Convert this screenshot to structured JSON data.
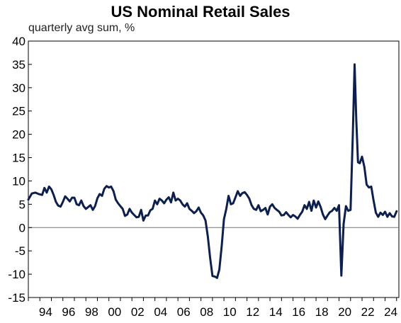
{
  "chart_data": {
    "type": "line",
    "title": "US Nominal Retail Sales",
    "subtitle": "quarterly avg sum, %",
    "xlabel": "",
    "ylabel": "",
    "xlim": [
      1993.0,
      2025.2
    ],
    "ylim": [
      -15,
      40
    ],
    "y_ticks": [
      40,
      35,
      30,
      25,
      20,
      15,
      10,
      5,
      0,
      -5,
      -10,
      -15
    ],
    "x_ticks": [
      {
        "year": 1994,
        "label": "94"
      },
      {
        "year": 1996,
        "label": "96"
      },
      {
        "year": 1998,
        "label": "98"
      },
      {
        "year": 2000,
        "label": "00"
      },
      {
        "year": 2002,
        "label": "02"
      },
      {
        "year": 2004,
        "label": "04"
      },
      {
        "year": 2006,
        "label": "06"
      },
      {
        "year": 2008,
        "label": "08"
      },
      {
        "year": 2010,
        "label": "10"
      },
      {
        "year": 2012,
        "label": "12"
      },
      {
        "year": 2014,
        "label": "14"
      },
      {
        "year": 2016,
        "label": "16"
      },
      {
        "year": 2018,
        "label": "18"
      },
      {
        "year": 2020,
        "label": "20"
      },
      {
        "year": 2022,
        "label": "22"
      },
      {
        "year": 2024,
        "label": "24"
      }
    ],
    "grid": false,
    "zero_line": true,
    "line_color": "#0d1f4d",
    "series": [
      {
        "values": [
          [
            1993.0,
            6.0
          ],
          [
            1993.3,
            7.3
          ],
          [
            1993.6,
            7.5
          ],
          [
            1993.9,
            7.2
          ],
          [
            1994.2,
            7.0
          ],
          [
            1994.4,
            8.5
          ],
          [
            1994.6,
            7.5
          ],
          [
            1994.8,
            8.8
          ],
          [
            1995.0,
            8.2
          ],
          [
            1995.2,
            7.0
          ],
          [
            1995.4,
            5.5
          ],
          [
            1995.6,
            4.7
          ],
          [
            1995.8,
            4.5
          ],
          [
            1996.0,
            5.5
          ],
          [
            1996.2,
            6.7
          ],
          [
            1996.4,
            6.2
          ],
          [
            1996.6,
            5.6
          ],
          [
            1996.8,
            6.4
          ],
          [
            1997.0,
            6.4
          ],
          [
            1997.2,
            5.0
          ],
          [
            1997.4,
            4.8
          ],
          [
            1997.6,
            5.8
          ],
          [
            1997.8,
            4.6
          ],
          [
            1998.0,
            4.0
          ],
          [
            1998.2,
            4.4
          ],
          [
            1998.4,
            4.8
          ],
          [
            1998.6,
            3.8
          ],
          [
            1998.8,
            4.6
          ],
          [
            1999.0,
            6.3
          ],
          [
            1999.2,
            7.2
          ],
          [
            1999.4,
            6.8
          ],
          [
            1999.6,
            8.3
          ],
          [
            1999.8,
            8.9
          ],
          [
            2000.0,
            8.6
          ],
          [
            2000.2,
            8.8
          ],
          [
            2000.4,
            7.8
          ],
          [
            2000.6,
            6.0
          ],
          [
            2000.8,
            5.2
          ],
          [
            2001.0,
            4.6
          ],
          [
            2001.2,
            4.0
          ],
          [
            2001.4,
            2.5
          ],
          [
            2001.6,
            2.8
          ],
          [
            2001.8,
            4.0
          ],
          [
            2002.0,
            3.2
          ],
          [
            2002.2,
            2.7
          ],
          [
            2002.4,
            2.2
          ],
          [
            2002.6,
            2.3
          ],
          [
            2002.8,
            3.8
          ],
          [
            2003.0,
            1.5
          ],
          [
            2003.2,
            2.6
          ],
          [
            2003.4,
            2.6
          ],
          [
            2003.6,
            3.7
          ],
          [
            2003.8,
            4.0
          ],
          [
            2004.0,
            5.8
          ],
          [
            2004.2,
            5.0
          ],
          [
            2004.4,
            6.2
          ],
          [
            2004.6,
            5.8
          ],
          [
            2004.8,
            5.2
          ],
          [
            2005.0,
            6.0
          ],
          [
            2005.2,
            6.5
          ],
          [
            2005.4,
            5.4
          ],
          [
            2005.6,
            7.5
          ],
          [
            2005.8,
            5.8
          ],
          [
            2006.0,
            6.2
          ],
          [
            2006.2,
            5.8
          ],
          [
            2006.4,
            5.0
          ],
          [
            2006.6,
            4.5
          ],
          [
            2006.8,
            5.2
          ],
          [
            2007.0,
            4.0
          ],
          [
            2007.2,
            3.6
          ],
          [
            2007.4,
            3.1
          ],
          [
            2007.6,
            3.5
          ],
          [
            2007.8,
            4.3
          ],
          [
            2008.0,
            3.2
          ],
          [
            2008.2,
            2.6
          ],
          [
            2008.4,
            1.5
          ],
          [
            2008.6,
            -2.0
          ],
          [
            2008.8,
            -6.5
          ],
          [
            2009.0,
            -10.4
          ],
          [
            2009.2,
            -10.5
          ],
          [
            2009.4,
            -10.8
          ],
          [
            2009.6,
            -9.0
          ],
          [
            2009.8,
            -4.0
          ],
          [
            2010.0,
            1.8
          ],
          [
            2010.2,
            4.0
          ],
          [
            2010.4,
            6.8
          ],
          [
            2010.6,
            5.0
          ],
          [
            2010.8,
            5.2
          ],
          [
            2011.0,
            6.5
          ],
          [
            2011.2,
            7.8
          ],
          [
            2011.4,
            6.8
          ],
          [
            2011.6,
            7.4
          ],
          [
            2011.8,
            7.6
          ],
          [
            2012.0,
            7.0
          ],
          [
            2012.2,
            6.2
          ],
          [
            2012.4,
            4.8
          ],
          [
            2012.6,
            4.0
          ],
          [
            2012.8,
            3.8
          ],
          [
            2013.0,
            4.8
          ],
          [
            2013.2,
            3.5
          ],
          [
            2013.4,
            3.8
          ],
          [
            2013.6,
            4.2
          ],
          [
            2013.8,
            2.8
          ],
          [
            2014.0,
            4.5
          ],
          [
            2014.2,
            5.0
          ],
          [
            2014.4,
            4.2
          ],
          [
            2014.6,
            3.8
          ],
          [
            2014.8,
            3.4
          ],
          [
            2015.0,
            2.6
          ],
          [
            2015.2,
            2.7
          ],
          [
            2015.4,
            3.3
          ],
          [
            2015.6,
            2.7
          ],
          [
            2015.8,
            2.2
          ],
          [
            2016.0,
            2.7
          ],
          [
            2016.2,
            2.4
          ],
          [
            2016.4,
            1.9
          ],
          [
            2016.6,
            2.7
          ],
          [
            2016.8,
            3.4
          ],
          [
            2017.0,
            4.8
          ],
          [
            2017.2,
            4.0
          ],
          [
            2017.4,
            5.5
          ],
          [
            2017.6,
            3.6
          ],
          [
            2017.8,
            5.8
          ],
          [
            2018.0,
            4.3
          ],
          [
            2018.2,
            5.6
          ],
          [
            2018.4,
            4.4
          ],
          [
            2018.6,
            2.8
          ],
          [
            2018.8,
            1.8
          ],
          [
            2019.0,
            2.6
          ],
          [
            2019.2,
            3.3
          ],
          [
            2019.4,
            3.6
          ],
          [
            2019.6,
            4.2
          ],
          [
            2019.8,
            3.6
          ],
          [
            2020.0,
            4.8
          ],
          [
            2020.2,
            -10.3
          ],
          [
            2020.4,
            0.8
          ],
          [
            2020.6,
            4.6
          ],
          [
            2020.8,
            3.6
          ],
          [
            2021.0,
            3.8
          ],
          [
            2021.2,
            20.0
          ],
          [
            2021.35,
            35.0
          ],
          [
            2021.5,
            23.0
          ],
          [
            2021.65,
            14.0
          ],
          [
            2021.8,
            13.8
          ],
          [
            2022.0,
            15.2
          ],
          [
            2022.2,
            13.0
          ],
          [
            2022.4,
            9.2
          ],
          [
            2022.6,
            8.6
          ],
          [
            2022.8,
            8.8
          ],
          [
            2023.0,
            5.8
          ],
          [
            2023.2,
            3.2
          ],
          [
            2023.4,
            2.3
          ],
          [
            2023.6,
            3.2
          ],
          [
            2023.8,
            2.7
          ],
          [
            2024.0,
            3.4
          ],
          [
            2024.2,
            2.3
          ],
          [
            2024.4,
            3.1
          ],
          [
            2024.6,
            2.4
          ],
          [
            2024.8,
            2.3
          ],
          [
            2025.0,
            3.5
          ]
        ]
      }
    ]
  }
}
